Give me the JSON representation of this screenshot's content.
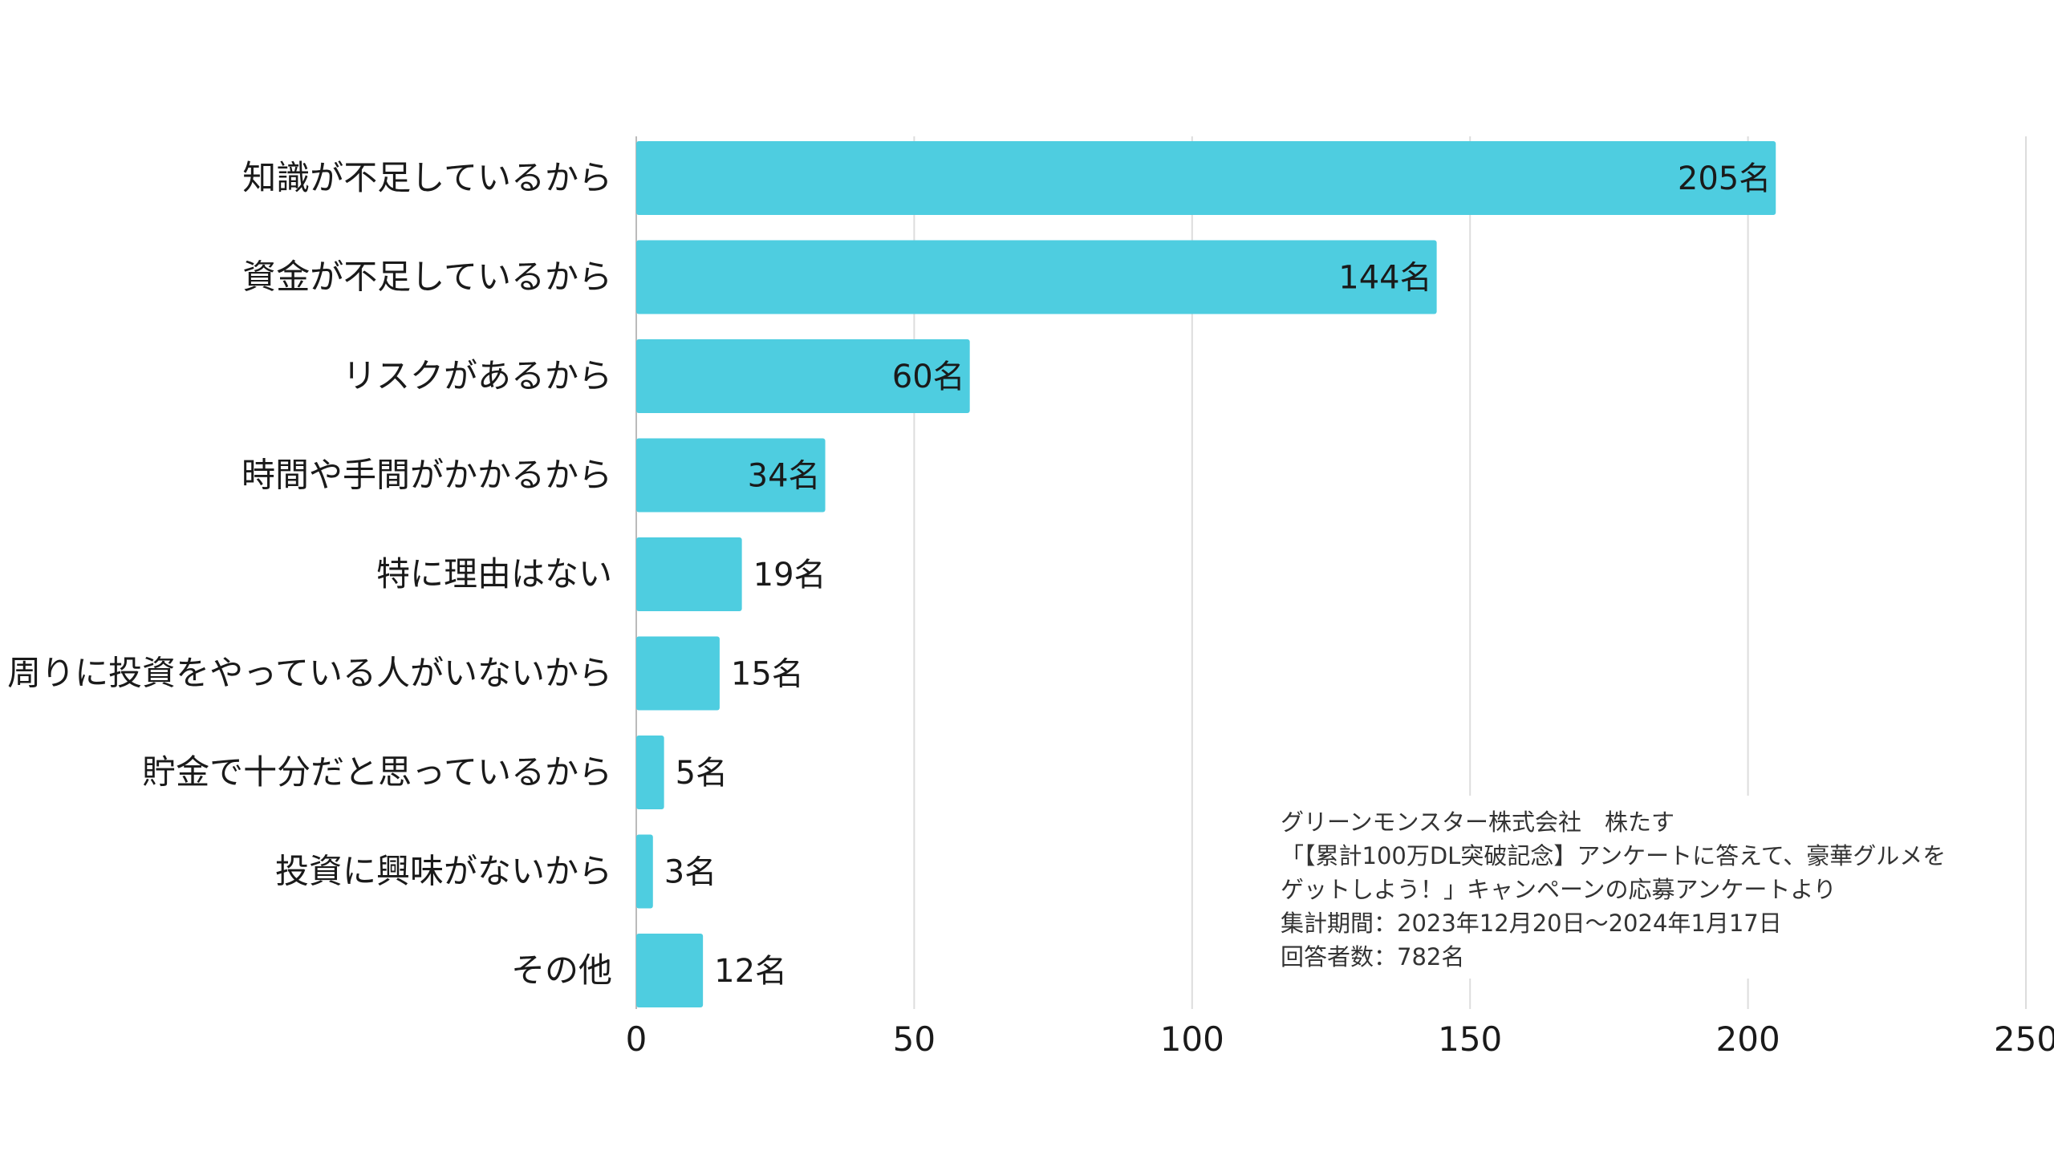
{
  "colors": {
    "bar": "#4ecde0",
    "grid": "#dddddd",
    "axis": "#bbbbbb"
  },
  "chart_data": {
    "type": "bar",
    "orientation": "horizontal",
    "categories": [
      "知識が不足しているから",
      "資金が不足しているから",
      "リスクがあるから",
      "時間や手間がかかるから",
      "特に理由はない",
      "周りに投資をやっている人がいないから",
      "貯金で十分だと思っているから",
      "投資に興味がないから",
      "その他"
    ],
    "values": [
      205,
      144,
      60,
      34,
      19,
      15,
      5,
      3,
      12
    ],
    "data_labels": [
      "205名",
      "144名",
      "60名",
      "34名",
      "19名",
      "15名",
      "5名",
      "3名",
      "12名"
    ],
    "xlim": [
      0,
      250
    ],
    "x_ticks": [
      "0",
      "50",
      "100",
      "150",
      "200",
      "250"
    ],
    "grid": true,
    "title": "",
    "xlabel": "",
    "ylabel": ""
  },
  "note": {
    "lines": [
      "グリーンモンスター株式会社　株たす",
      "「【累計100万DL突破記念】アンケートに答えて、豪華グルメを",
      "ゲットしよう！」キャンペーンの応募アンケートより",
      "集計期間：2023年12月20日〜2024年1月17日",
      "回答者数：782名"
    ]
  }
}
